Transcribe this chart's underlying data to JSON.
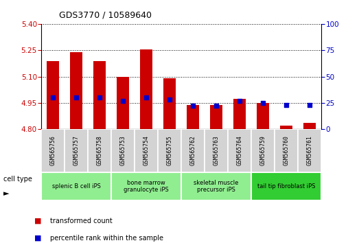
{
  "title": "GDS3770 / 10589640",
  "samples": [
    "GSM565756",
    "GSM565757",
    "GSM565758",
    "GSM565753",
    "GSM565754",
    "GSM565755",
    "GSM565762",
    "GSM565763",
    "GSM565764",
    "GSM565759",
    "GSM565760",
    "GSM565761"
  ],
  "bar_values": [
    5.19,
    5.24,
    5.19,
    5.1,
    5.255,
    5.09,
    4.935,
    4.935,
    4.97,
    4.95,
    4.82,
    4.835
  ],
  "percentile_values": [
    30,
    30,
    30,
    27,
    30,
    28,
    22,
    22,
    27,
    25,
    23,
    23
  ],
  "y_min": 4.8,
  "y_max": 5.4,
  "y_ticks": [
    4.8,
    4.95,
    5.1,
    5.25,
    5.4
  ],
  "y_right_ticks": [
    0,
    25,
    50,
    75,
    100
  ],
  "bar_color": "#cc0000",
  "dot_color": "#0000cc",
  "cell_type_groups": [
    {
      "label": "splenic B cell iPS",
      "start": 0,
      "end": 3,
      "color": "#90ee90"
    },
    {
      "label": "bone marrow\ngranulocyte iPS",
      "start": 3,
      "end": 6,
      "color": "#90ee90"
    },
    {
      "label": "skeletal muscle\nprecursor iPS",
      "start": 6,
      "end": 9,
      "color": "#90ee90"
    },
    {
      "label": "tail tip fibroblast iPS",
      "start": 9,
      "end": 12,
      "color": "#32cd32"
    }
  ],
  "xlabel_cell_type": "cell type",
  "legend_bar_label": "transformed count",
  "legend_dot_label": "percentile rank within the sample",
  "bar_color_hex": "#cc0000",
  "dot_color_hex": "#0000cc",
  "tick_color_left": "#cc0000",
  "tick_color_right": "#0000cc",
  "sample_box_color": "#d3d3d3",
  "bar_width": 0.55
}
